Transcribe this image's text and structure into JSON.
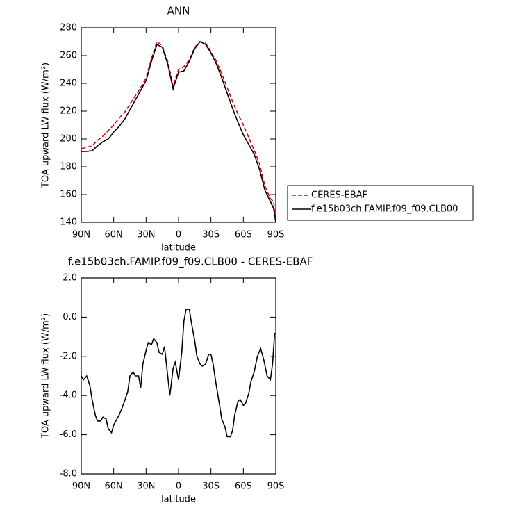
{
  "chart_data": [
    {
      "type": "line",
      "title": "ANN",
      "xlabel": "latitude",
      "ylabel": "TOA upward LW flux (W/m²)",
      "xlim": [
        90,
        -90
      ],
      "xticks": [
        {
          "value": 90,
          "label": "90N"
        },
        {
          "value": 60,
          "label": "60N"
        },
        {
          "value": 30,
          "label": "30N"
        },
        0,
        {
          "value": -30,
          "label": "30S"
        },
        {
          "value": -60,
          "label": "60S"
        },
        {
          "value": -90,
          "label": "90S"
        }
      ],
      "ylim": [
        140,
        280
      ],
      "yticks": [
        140,
        160,
        180,
        200,
        220,
        240,
        260,
        280
      ],
      "legend": "outside-right",
      "x": [
        90,
        85,
        80,
        75,
        70,
        65,
        60,
        55,
        50,
        45,
        40,
        35,
        30,
        25,
        20,
        15,
        10,
        5,
        0,
        -5,
        -10,
        -15,
        -20,
        -25,
        -30,
        -35,
        -40,
        -45,
        -50,
        -55,
        -60,
        -65,
        -70,
        -75,
        -80,
        -85,
        -88,
        -90
      ],
      "series": [
        {
          "name": "CERES-EBAF",
          "color": "#dd0000",
          "linestyle": "dashed",
          "values": [
            193,
            194,
            195,
            199,
            202,
            206,
            210,
            215,
            219,
            225,
            231,
            237,
            244,
            258,
            270,
            267,
            256,
            238,
            250,
            252,
            257,
            266,
            270,
            269,
            263,
            256,
            247,
            237,
            227,
            218,
            210,
            201,
            192,
            182,
            166,
            157,
            155,
            140
          ]
        },
        {
          "name": "f.e15b03ch.FAMIP.f09_f09.CLB00",
          "color": "#000000",
          "linestyle": "solid",
          "values": [
            191,
            191,
            191.5,
            195,
            198,
            200,
            205,
            209,
            214,
            221,
            228,
            235,
            242,
            256,
            268,
            266,
            254,
            236,
            248,
            249,
            256,
            265,
            270,
            268,
            262,
            254,
            244,
            233,
            222,
            212,
            203,
            196,
            189,
            178,
            163,
            155,
            150,
            140
          ]
        }
      ]
    },
    {
      "type": "line",
      "title": "f.e15b03ch.FAMIP.f09_f09.CLB00 - CERES-EBAF",
      "xlabel": "latitude",
      "ylabel": "TOA upward LW flux (W/m²)",
      "xlim": [
        90,
        -90
      ],
      "xticks": [
        {
          "value": 90,
          "label": "90N"
        },
        {
          "value": 60,
          "label": "60N"
        },
        {
          "value": 30,
          "label": "30N"
        },
        0,
        {
          "value": -30,
          "label": "30S"
        },
        {
          "value": -60,
          "label": "60S"
        },
        {
          "value": -90,
          "label": "90S"
        }
      ],
      "ylim": [
        -8,
        2
      ],
      "yticks": [
        {
          "value": -8,
          "label": "-8.0"
        },
        {
          "value": -6,
          "label": "-6.0"
        },
        {
          "value": -4,
          "label": "-4.0"
        },
        {
          "value": -2,
          "label": "-2.0"
        },
        {
          "value": 0,
          "label": "0.0"
        },
        {
          "value": 2,
          "label": "2.0"
        }
      ],
      "x": [
        90,
        88,
        85,
        82,
        80,
        77,
        75,
        72,
        70,
        67,
        65,
        62,
        60,
        57,
        55,
        52,
        50,
        47,
        45,
        42,
        40,
        37,
        35,
        33,
        30,
        28,
        25,
        23,
        20,
        18,
        15,
        13,
        10,
        8,
        5,
        3,
        0,
        -3,
        -5,
        -7,
        -10,
        -12,
        -15,
        -17,
        -20,
        -22,
        -25,
        -28,
        -30,
        -32,
        -35,
        -38,
        -40,
        -43,
        -45,
        -48,
        -50,
        -52,
        -55,
        -57,
        -60,
        -62,
        -65,
        -67,
        -70,
        -73,
        -76,
        -79,
        -82,
        -85,
        -87,
        -89
      ],
      "series": [
        {
          "color": "#000000",
          "linestyle": "solid",
          "values": [
            -3.0,
            -3.2,
            -3.0,
            -3.5,
            -4.2,
            -5.0,
            -5.3,
            -5.3,
            -5.1,
            -5.2,
            -5.7,
            -5.9,
            -5.5,
            -5.2,
            -5.0,
            -4.6,
            -4.3,
            -3.8,
            -3.0,
            -2.8,
            -3.0,
            -3.0,
            -3.6,
            -2.4,
            -1.7,
            -1.3,
            -1.4,
            -1.1,
            -1.3,
            -1.8,
            -1.9,
            -1.5,
            -3.0,
            -4.0,
            -2.6,
            -2.3,
            -3.2,
            -1.8,
            -0.2,
            0.4,
            0.4,
            -0.3,
            -1.2,
            -2.0,
            -2.4,
            -2.5,
            -2.4,
            -1.9,
            -1.9,
            -2.4,
            -3.5,
            -4.5,
            -5.2,
            -5.6,
            -6.1,
            -6.1,
            -5.8,
            -5.0,
            -4.3,
            -4.2,
            -4.5,
            -4.4,
            -3.9,
            -3.3,
            -2.8,
            -2.0,
            -1.6,
            -2.2,
            -3.0,
            -3.2,
            -2.4,
            -0.8
          ]
        }
      ]
    }
  ]
}
